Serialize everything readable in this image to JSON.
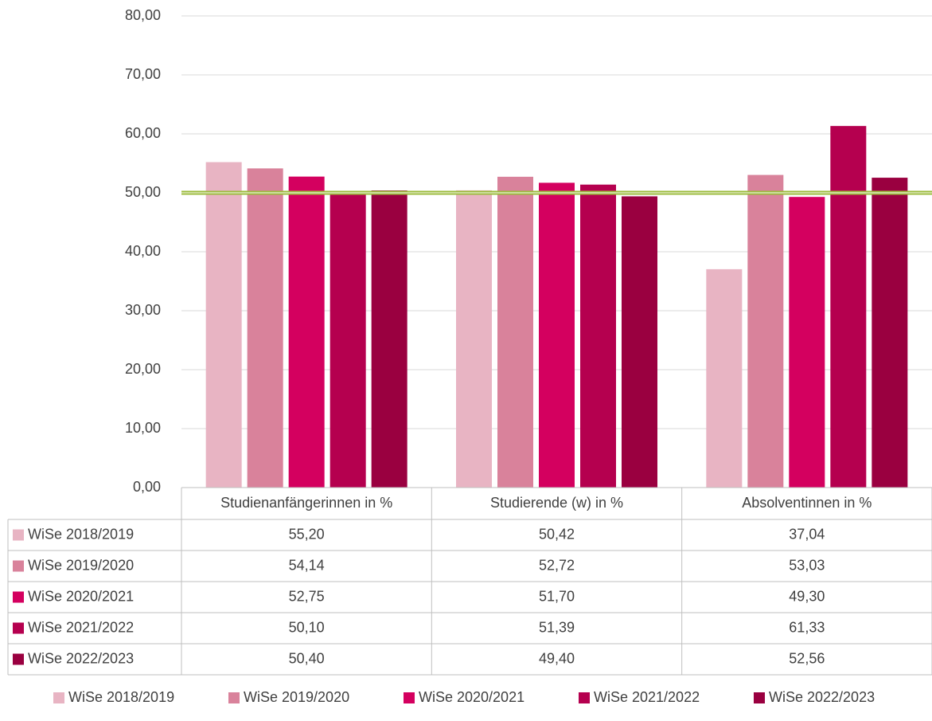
{
  "chart_data": {
    "type": "bar",
    "categories": [
      "Studienanfängerinnen in %",
      "Studierende (w) in %",
      "Absolventinnen in %"
    ],
    "series": [
      {
        "name": "WiSe 2018/2019",
        "color": "#e8b4c3",
        "values": [
          55.2,
          50.42,
          37.04
        ],
        "value_labels": [
          "55,20",
          "50,42",
          "37,04"
        ]
      },
      {
        "name": "WiSe 2019/2020",
        "color": "#d9829b",
        "values": [
          54.14,
          52.72,
          53.03
        ],
        "value_labels": [
          "54,14",
          "52,72",
          "53,03"
        ]
      },
      {
        "name": "WiSe 2020/2021",
        "color": "#d4005f",
        "values": [
          52.75,
          51.7,
          49.3
        ],
        "value_labels": [
          "52,75",
          "51,70",
          "49,30"
        ]
      },
      {
        "name": "WiSe 2021/2022",
        "color": "#b5004f",
        "values": [
          50.1,
          51.39,
          61.33
        ],
        "value_labels": [
          "50,10",
          "51,39",
          "61,33"
        ]
      },
      {
        "name": "WiSe 2022/2023",
        "color": "#9a0040",
        "values": [
          50.4,
          49.4,
          52.56
        ],
        "value_labels": [
          "50,40",
          "49,40",
          "52,56"
        ]
      }
    ],
    "ylim": [
      0,
      80
    ],
    "yticks": [
      {
        "value": 0,
        "label": "0,00"
      },
      {
        "value": 10,
        "label": "10,00"
      },
      {
        "value": 20,
        "label": "20,00"
      },
      {
        "value": 30,
        "label": "30,00"
      },
      {
        "value": 40,
        "label": "40,00"
      },
      {
        "value": 50,
        "label": "50,00"
      },
      {
        "value": 60,
        "label": "60,00"
      },
      {
        "value": 70,
        "label": "70,00"
      },
      {
        "value": 80,
        "label": "80,00"
      }
    ],
    "grid": true,
    "reference_line": {
      "value": 50,
      "color": "#9bbb3b"
    },
    "data_table": true,
    "legend": "bottom"
  }
}
